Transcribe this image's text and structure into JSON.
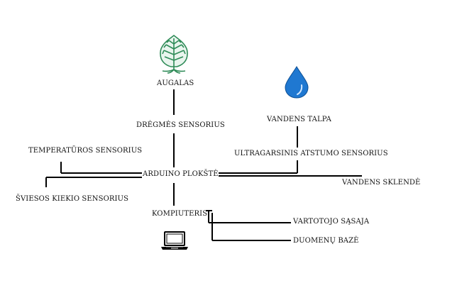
{
  "diagram": {
    "nodes": {
      "plant": "AUGALAS",
      "moisture_sensor": "DRĖGMĖS SENSORIUS",
      "water_tank": "VANDENS TALPA",
      "ultrasonic_sensor": "ULTRAGARSINIS ATSTUMO SENSORIUS",
      "temperature_sensor": "TEMPERATŪROS SENSORIUS",
      "arduino": "ARDUINO PLOKŠTĖ",
      "water_valve": "VANDENS SKLENDĖ",
      "light_sensor": "ŠVIESOS KIEKIO SENSORIUS",
      "computer": "KOMPIUTERIS",
      "user_interface": "VARTOTOJO SĄSAJA",
      "database": "DUOMENŲ BAZĖ"
    },
    "icons": {
      "plant": "tree-icon",
      "water_tank": "water-drop-icon",
      "computer": "laptop-icon"
    },
    "colors": {
      "plant_icon": "#2e8b57",
      "water_drop": "#1f78d1",
      "lines": "#000000"
    }
  }
}
